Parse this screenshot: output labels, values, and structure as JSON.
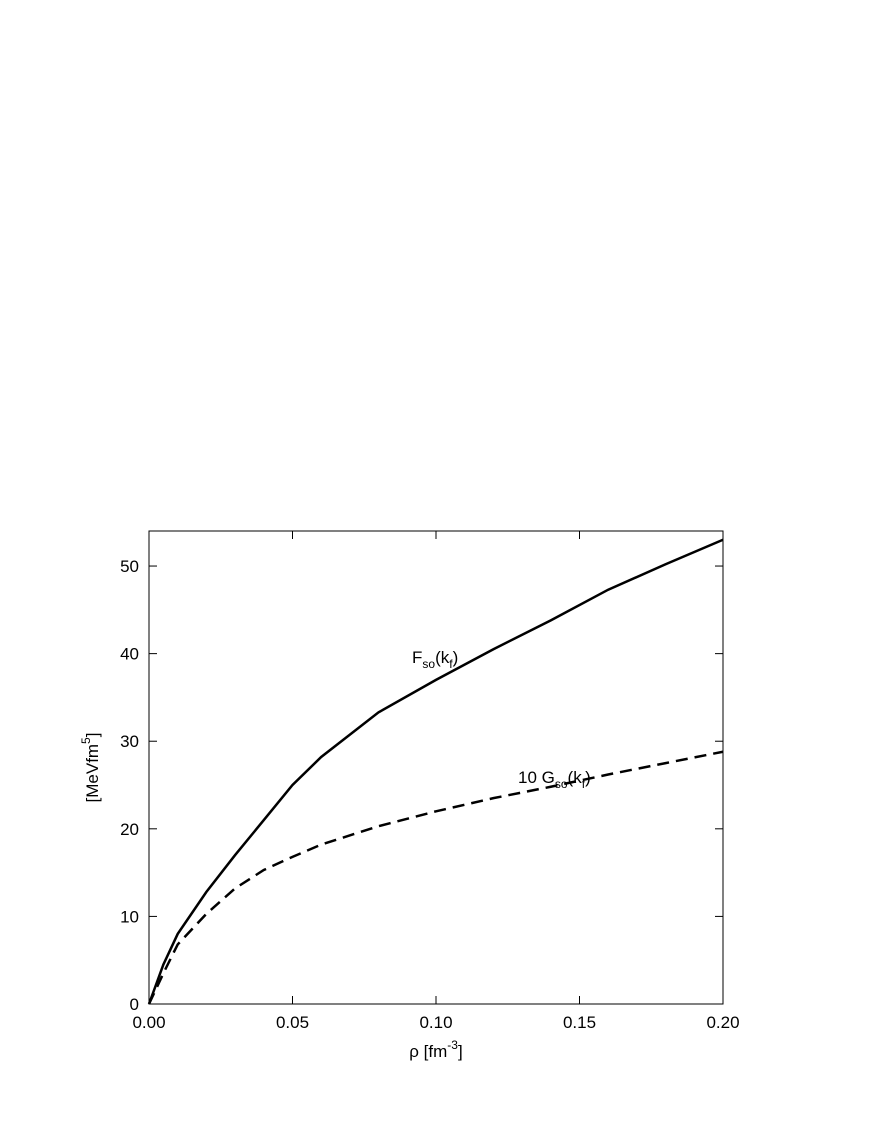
{
  "chart_data": {
    "type": "line",
    "x_label": [
      {
        "t": "ρ [fm"
      },
      {
        "sup": "-3"
      },
      {
        "t": "]"
      }
    ],
    "y_label": [
      {
        "t": "[MeVfm"
      },
      {
        "sup": "5"
      },
      {
        "t": "]"
      }
    ],
    "x": [
      0,
      0.005,
      0.01,
      0.02,
      0.03,
      0.04,
      0.05,
      0.06,
      0.08,
      0.1,
      0.12,
      0.14,
      0.16,
      0.18,
      0.2
    ],
    "series": [
      {
        "label": [
          {
            "t": "F"
          },
          {
            "sub": "so"
          },
          {
            "t": "(k"
          },
          {
            "sub": "f"
          },
          {
            "t": ")"
          }
        ],
        "color": "#000000",
        "dash": false,
        "values": [
          0,
          4.5,
          8,
          12.8,
          17,
          21,
          25,
          28.2,
          33.3,
          37,
          40.5,
          43.8,
          47.3,
          50.2,
          53
        ]
      },
      {
        "label": [
          {
            "t": "10 G"
          },
          {
            "sub": "so"
          },
          {
            "t": "(k"
          },
          {
            "sub": "f"
          },
          {
            "t": ")"
          }
        ],
        "color": "#000000",
        "dash": true,
        "values": [
          0,
          3.5,
          6.8,
          10.3,
          13.2,
          15.3,
          16.8,
          18.2,
          20.3,
          22,
          23.5,
          24.8,
          26.2,
          27.5,
          28.8
        ]
      }
    ],
    "xlim": [
      0,
      0.2
    ],
    "ylim": [
      0,
      54
    ],
    "xticks": [
      {
        "value": 0,
        "label": "0.00"
      },
      0.05,
      {
        "value": 0.1,
        "label": "0.10"
      },
      0.15,
      {
        "value": 0.2,
        "label": "0.20"
      }
    ],
    "yticks": [
      0,
      10,
      20,
      30,
      40,
      50
    ]
  }
}
